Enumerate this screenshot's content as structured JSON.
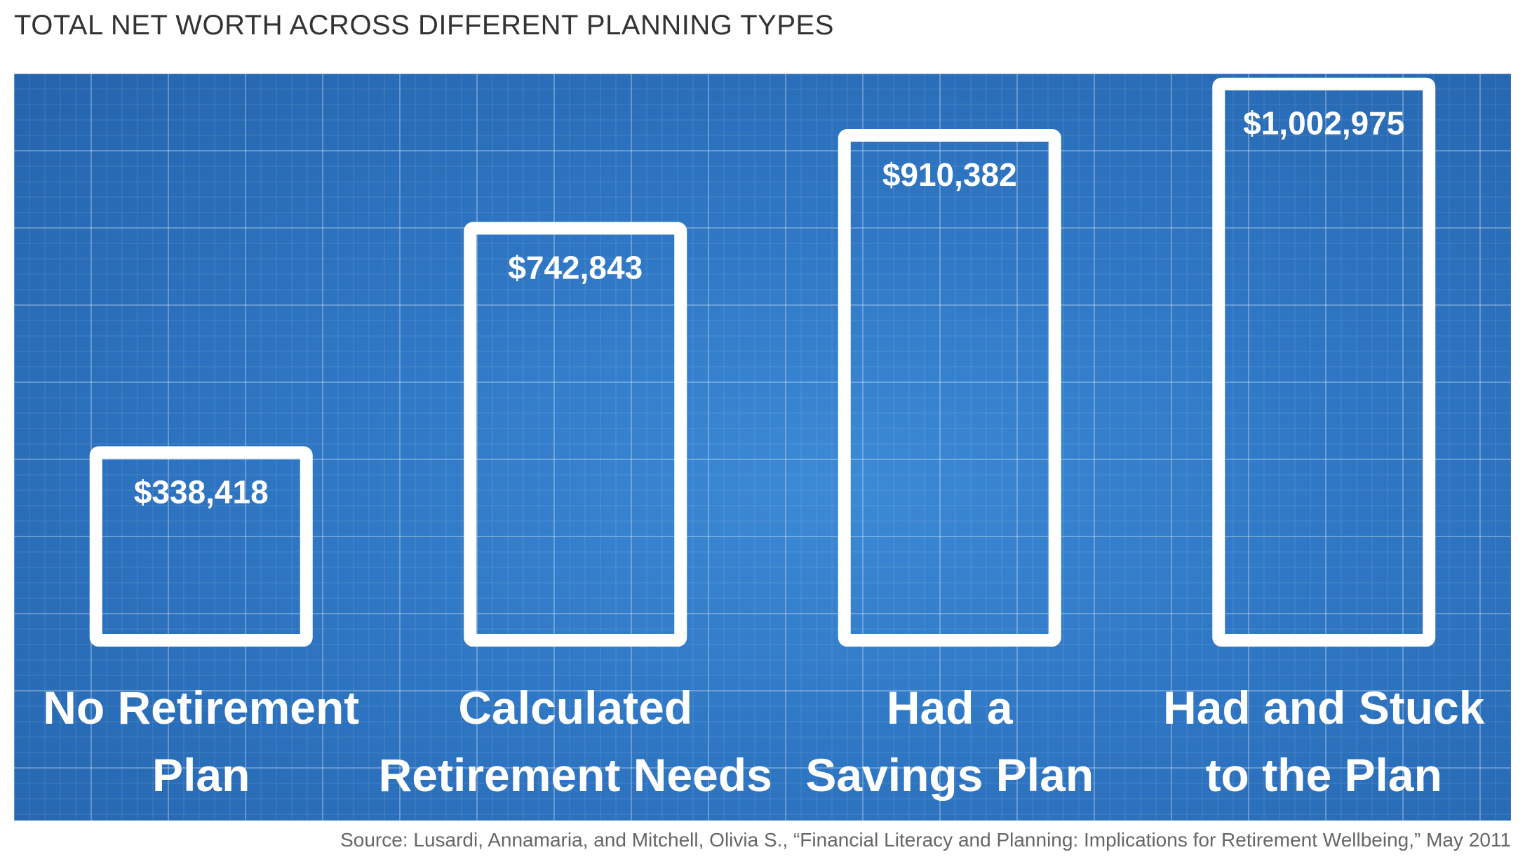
{
  "title": "TOTAL NET WORTH ACROSS DIFFERENT PLANNING TYPES",
  "source": {
    "label": "Source:",
    "text": "Lusardi, Annamaria, and Mitchell, Olivia S., “Financial Literacy and Planning: Implications for Retirement Wellbeing,” May 2011"
  },
  "colors": {
    "panel_background": "#2f77c4",
    "bar_outline": "#ffffff",
    "label_text": "#ffffff"
  },
  "chart_data": {
    "type": "bar",
    "title": "TOTAL NET WORTH ACROSS DIFFERENT PLANNING TYPES",
    "categories": [
      [
        "No Retirement",
        "Plan"
      ],
      [
        "Calculated",
        "Retirement Needs"
      ],
      [
        "Had a",
        "Savings Plan"
      ],
      [
        "Had and Stuck",
        "to the Plan"
      ]
    ],
    "values": [
      338418,
      742843,
      910382,
      1002975
    ],
    "value_labels": [
      "$338,418",
      "$742,843",
      "$910,382",
      "$1,002,975"
    ],
    "xlabel": "",
    "ylabel": "",
    "ylim": [
      0,
      1100000
    ],
    "grid": true,
    "legend": "none",
    "bar_style": "outlined"
  }
}
